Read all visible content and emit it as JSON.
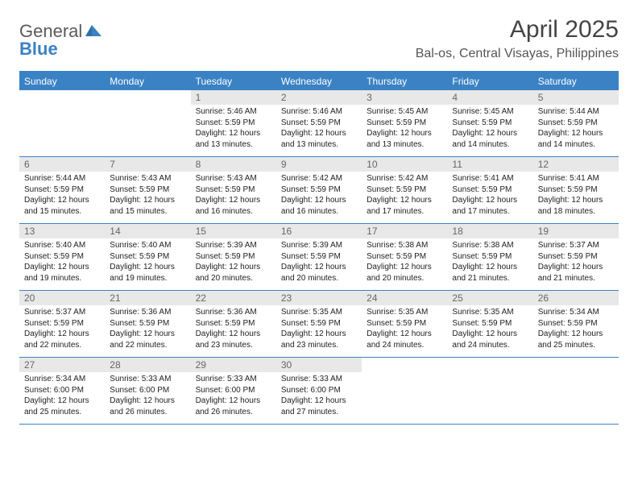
{
  "brand": {
    "word1": "General",
    "word2": "Blue",
    "word1_color": "#5a5a5a",
    "word2_color": "#3b82c4",
    "mark_color": "#2f6fa8"
  },
  "title": "April 2025",
  "location": "Bal-os, Central Visayas, Philippines",
  "colors": {
    "header_bg": "#3b82c4",
    "header_text": "#ffffff",
    "daynum_bg": "#e8e8e8",
    "daynum_text": "#666666",
    "rule": "#3b82c4",
    "body_text": "#222222"
  },
  "day_names": [
    "Sunday",
    "Monday",
    "Tuesday",
    "Wednesday",
    "Thursday",
    "Friday",
    "Saturday"
  ],
  "weeks": [
    [
      null,
      null,
      {
        "n": "1",
        "sr": "Sunrise: 5:46 AM",
        "ss": "Sunset: 5:59 PM",
        "d1": "Daylight: 12 hours",
        "d2": "and 13 minutes."
      },
      {
        "n": "2",
        "sr": "Sunrise: 5:46 AM",
        "ss": "Sunset: 5:59 PM",
        "d1": "Daylight: 12 hours",
        "d2": "and 13 minutes."
      },
      {
        "n": "3",
        "sr": "Sunrise: 5:45 AM",
        "ss": "Sunset: 5:59 PM",
        "d1": "Daylight: 12 hours",
        "d2": "and 13 minutes."
      },
      {
        "n": "4",
        "sr": "Sunrise: 5:45 AM",
        "ss": "Sunset: 5:59 PM",
        "d1": "Daylight: 12 hours",
        "d2": "and 14 minutes."
      },
      {
        "n": "5",
        "sr": "Sunrise: 5:44 AM",
        "ss": "Sunset: 5:59 PM",
        "d1": "Daylight: 12 hours",
        "d2": "and 14 minutes."
      }
    ],
    [
      {
        "n": "6",
        "sr": "Sunrise: 5:44 AM",
        "ss": "Sunset: 5:59 PM",
        "d1": "Daylight: 12 hours",
        "d2": "and 15 minutes."
      },
      {
        "n": "7",
        "sr": "Sunrise: 5:43 AM",
        "ss": "Sunset: 5:59 PM",
        "d1": "Daylight: 12 hours",
        "d2": "and 15 minutes."
      },
      {
        "n": "8",
        "sr": "Sunrise: 5:43 AM",
        "ss": "Sunset: 5:59 PM",
        "d1": "Daylight: 12 hours",
        "d2": "and 16 minutes."
      },
      {
        "n": "9",
        "sr": "Sunrise: 5:42 AM",
        "ss": "Sunset: 5:59 PM",
        "d1": "Daylight: 12 hours",
        "d2": "and 16 minutes."
      },
      {
        "n": "10",
        "sr": "Sunrise: 5:42 AM",
        "ss": "Sunset: 5:59 PM",
        "d1": "Daylight: 12 hours",
        "d2": "and 17 minutes."
      },
      {
        "n": "11",
        "sr": "Sunrise: 5:41 AM",
        "ss": "Sunset: 5:59 PM",
        "d1": "Daylight: 12 hours",
        "d2": "and 17 minutes."
      },
      {
        "n": "12",
        "sr": "Sunrise: 5:41 AM",
        "ss": "Sunset: 5:59 PM",
        "d1": "Daylight: 12 hours",
        "d2": "and 18 minutes."
      }
    ],
    [
      {
        "n": "13",
        "sr": "Sunrise: 5:40 AM",
        "ss": "Sunset: 5:59 PM",
        "d1": "Daylight: 12 hours",
        "d2": "and 19 minutes."
      },
      {
        "n": "14",
        "sr": "Sunrise: 5:40 AM",
        "ss": "Sunset: 5:59 PM",
        "d1": "Daylight: 12 hours",
        "d2": "and 19 minutes."
      },
      {
        "n": "15",
        "sr": "Sunrise: 5:39 AM",
        "ss": "Sunset: 5:59 PM",
        "d1": "Daylight: 12 hours",
        "d2": "and 20 minutes."
      },
      {
        "n": "16",
        "sr": "Sunrise: 5:39 AM",
        "ss": "Sunset: 5:59 PM",
        "d1": "Daylight: 12 hours",
        "d2": "and 20 minutes."
      },
      {
        "n": "17",
        "sr": "Sunrise: 5:38 AM",
        "ss": "Sunset: 5:59 PM",
        "d1": "Daylight: 12 hours",
        "d2": "and 20 minutes."
      },
      {
        "n": "18",
        "sr": "Sunrise: 5:38 AM",
        "ss": "Sunset: 5:59 PM",
        "d1": "Daylight: 12 hours",
        "d2": "and 21 minutes."
      },
      {
        "n": "19",
        "sr": "Sunrise: 5:37 AM",
        "ss": "Sunset: 5:59 PM",
        "d1": "Daylight: 12 hours",
        "d2": "and 21 minutes."
      }
    ],
    [
      {
        "n": "20",
        "sr": "Sunrise: 5:37 AM",
        "ss": "Sunset: 5:59 PM",
        "d1": "Daylight: 12 hours",
        "d2": "and 22 minutes."
      },
      {
        "n": "21",
        "sr": "Sunrise: 5:36 AM",
        "ss": "Sunset: 5:59 PM",
        "d1": "Daylight: 12 hours",
        "d2": "and 22 minutes."
      },
      {
        "n": "22",
        "sr": "Sunrise: 5:36 AM",
        "ss": "Sunset: 5:59 PM",
        "d1": "Daylight: 12 hours",
        "d2": "and 23 minutes."
      },
      {
        "n": "23",
        "sr": "Sunrise: 5:35 AM",
        "ss": "Sunset: 5:59 PM",
        "d1": "Daylight: 12 hours",
        "d2": "and 23 minutes."
      },
      {
        "n": "24",
        "sr": "Sunrise: 5:35 AM",
        "ss": "Sunset: 5:59 PM",
        "d1": "Daylight: 12 hours",
        "d2": "and 24 minutes."
      },
      {
        "n": "25",
        "sr": "Sunrise: 5:35 AM",
        "ss": "Sunset: 5:59 PM",
        "d1": "Daylight: 12 hours",
        "d2": "and 24 minutes."
      },
      {
        "n": "26",
        "sr": "Sunrise: 5:34 AM",
        "ss": "Sunset: 5:59 PM",
        "d1": "Daylight: 12 hours",
        "d2": "and 25 minutes."
      }
    ],
    [
      {
        "n": "27",
        "sr": "Sunrise: 5:34 AM",
        "ss": "Sunset: 6:00 PM",
        "d1": "Daylight: 12 hours",
        "d2": "and 25 minutes."
      },
      {
        "n": "28",
        "sr": "Sunrise: 5:33 AM",
        "ss": "Sunset: 6:00 PM",
        "d1": "Daylight: 12 hours",
        "d2": "and 26 minutes."
      },
      {
        "n": "29",
        "sr": "Sunrise: 5:33 AM",
        "ss": "Sunset: 6:00 PM",
        "d1": "Daylight: 12 hours",
        "d2": "and 26 minutes."
      },
      {
        "n": "30",
        "sr": "Sunrise: 5:33 AM",
        "ss": "Sunset: 6:00 PM",
        "d1": "Daylight: 12 hours",
        "d2": "and 27 minutes."
      },
      null,
      null,
      null
    ]
  ]
}
